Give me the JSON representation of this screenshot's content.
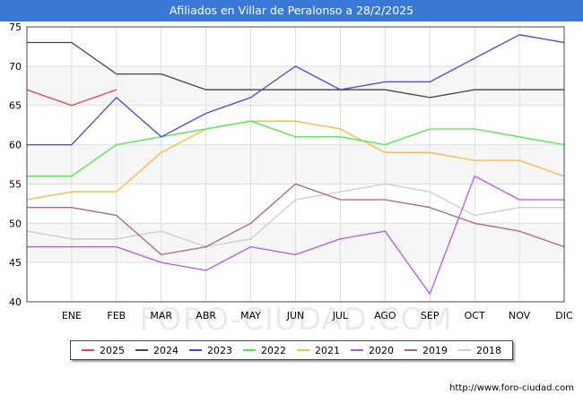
{
  "header": {
    "title": "Afiliados en Villar de Peralonso a 28/2/2025"
  },
  "watermark": "FORO-CIUDAD.COM",
  "footer": {
    "url": "http://www.foro-ciudad.com"
  },
  "chart_data": {
    "type": "line",
    "categories": [
      "",
      "ENE",
      "FEB",
      "MAR",
      "ABR",
      "MAY",
      "JUN",
      "JUL",
      "AGO",
      "SEP",
      "OCT",
      "NOV",
      "DIC"
    ],
    "ylim": [
      40,
      75
    ],
    "yticks": [
      40,
      45,
      50,
      55,
      60,
      65,
      70,
      75
    ],
    "grid": true,
    "legend_position": "bottom",
    "series": [
      {
        "name": "2025",
        "color": "#e34444",
        "values": [
          67,
          65,
          67,
          null,
          null,
          null,
          null,
          null,
          null,
          null,
          null,
          null,
          null
        ]
      },
      {
        "name": "2024",
        "color": "#444444",
        "values": [
          73,
          73,
          69,
          69,
          67,
          67,
          67,
          67,
          67,
          66,
          67,
          67,
          67
        ]
      },
      {
        "name": "2023",
        "color": "#4444dd",
        "values": [
          60,
          60,
          66,
          61,
          64,
          66,
          70,
          67,
          68,
          68,
          71,
          74,
          73
        ]
      },
      {
        "name": "2022",
        "color": "#44ee44",
        "values": [
          56,
          56,
          60,
          61,
          62,
          63,
          61,
          61,
          60,
          62,
          62,
          61,
          60
        ]
      },
      {
        "name": "2021",
        "color": "#ffb833",
        "values": [
          53,
          54,
          54,
          59,
          62,
          63,
          63,
          62,
          59,
          59,
          58,
          58,
          56
        ]
      },
      {
        "name": "2020",
        "color": "#b455ee",
        "values": [
          47,
          47,
          47,
          45,
          44,
          47,
          46,
          48,
          49,
          41,
          56,
          53,
          53
        ]
      },
      {
        "name": "2019",
        "color": "#b06666",
        "values": [
          52,
          52,
          51,
          46,
          47,
          50,
          55,
          53,
          53,
          52,
          50,
          49,
          47
        ]
      },
      {
        "name": "2018",
        "color": "#cccccc",
        "values": [
          49,
          48,
          48,
          49,
          47,
          48,
          53,
          54,
          55,
          54,
          51,
          52,
          52
        ]
      }
    ]
  }
}
